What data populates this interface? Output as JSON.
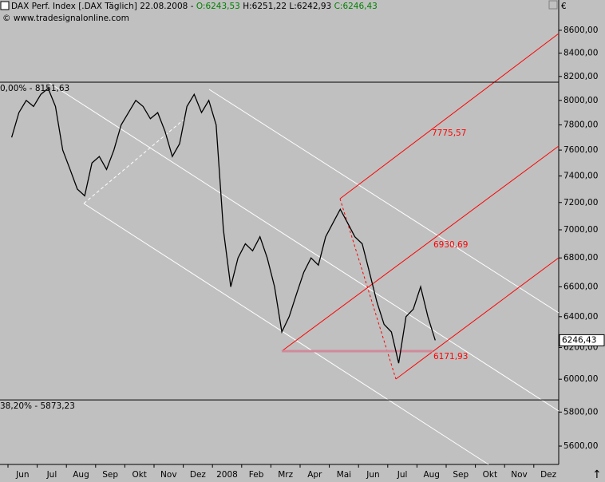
{
  "header": {
    "instrument": "DAX Perf. Index [.DAX  Täglich] 22.08.2008 - ",
    "open": "O:6243,53",
    "high": "H:6251,22",
    "low": "L:6242,93",
    "close": "C:6246,43",
    "copyright": "© www.tradesignalonline.com",
    "currency": "€"
  },
  "chart_data": {
    "type": "line",
    "log_scale": true,
    "categories": [
      null,
      "Jun",
      null,
      null,
      null,
      "Jul",
      null,
      null,
      null,
      "Aug",
      null,
      null,
      null,
      "Sep",
      null,
      null,
      null,
      "Okt",
      null,
      null,
      null,
      "Nov",
      null,
      null,
      null,
      "Dez",
      null,
      null,
      null,
      "2008",
      null,
      null,
      null,
      "Feb",
      null,
      null,
      null,
      "Mrz",
      null,
      null,
      null,
      "Apr",
      null,
      null,
      null,
      "Mai",
      null,
      null,
      null,
      "Jun",
      null,
      null,
      null,
      "Jul",
      null,
      null,
      null,
      "Aug",
      null,
      null,
      null,
      "Sep",
      null,
      null,
      null,
      "Okt",
      null,
      null,
      null,
      "Nov",
      null,
      null,
      null,
      "Dez",
      null,
      null
    ],
    "series": [
      {
        "name": "DAX",
        "color": "#000000",
        "values": [
          7700,
          7900,
          8000,
          7950,
          8050,
          8100,
          7950,
          7600,
          7450,
          7300,
          7250,
          7500,
          7550,
          7450,
          7600,
          7800,
          7900,
          8000,
          7950,
          7850,
          7900,
          7750,
          7550,
          7650,
          7950,
          8050,
          7900,
          8000,
          7800,
          7000,
          6600,
          6800,
          6900,
          6850,
          6950,
          6800,
          6600,
          6300,
          6400,
          6550,
          6700,
          6800,
          6750,
          6950,
          7050,
          7150,
          7050,
          6950,
          6900,
          6700,
          6500,
          6350,
          6300,
          6100,
          6400,
          6450,
          6600,
          6400,
          6246,
          null,
          null,
          null,
          null,
          null,
          null,
          null,
          null,
          null,
          null,
          null,
          null,
          null,
          null,
          null,
          null,
          null
        ]
      }
    ],
    "ylim": [
      5495,
      8873
    ],
    "yticks": [
      {
        "value": 5600,
        "label": "5600,00"
      },
      {
        "value": 5800,
        "label": "5800,00"
      },
      {
        "value": 6000,
        "label": "6000,00"
      },
      {
        "value": 6200,
        "label": "6200,00"
      },
      {
        "value": 6400,
        "label": "6400,00"
      },
      {
        "value": 6600,
        "label": "6600,00"
      },
      {
        "value": 6800,
        "label": "6800,00"
      },
      {
        "value": 7000,
        "label": "7000,00"
      },
      {
        "value": 7200,
        "label": "7200,00"
      },
      {
        "value": 7400,
        "label": "7400,00"
      },
      {
        "value": 7600,
        "label": "7600,00"
      },
      {
        "value": 7800,
        "label": "7800,00"
      },
      {
        "value": 8000,
        "label": "8000,00"
      },
      {
        "value": 8200,
        "label": "8200,00"
      },
      {
        "value": 8400,
        "label": "8400,00"
      },
      {
        "value": 8600,
        "label": "8600,00"
      }
    ],
    "hlines": [
      {
        "value": 8151.63,
        "label": "0,00% - 8151,63"
      },
      {
        "value": 5873.23,
        "label": "38,20% - 5873,23"
      }
    ],
    "last_value_label": "6246,43",
    "annotations": [
      "7775,57",
      "6930,69",
      "6171,93"
    ]
  }
}
